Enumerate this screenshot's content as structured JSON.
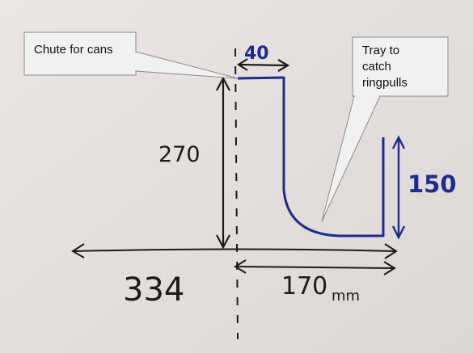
{
  "callouts": {
    "chute": "Chute for cans",
    "tray": "Tray to\ncatch\nringpulls"
  },
  "dimensions": {
    "chute_width": "40",
    "chute_height": "270",
    "tray_height": "150",
    "total_width": "334",
    "tray_width": "170",
    "unit": "mm"
  },
  "colors": {
    "background": "#e8e3e1",
    "ink_black": "#1b1b1b",
    "ink_blue": "#1c2c8e",
    "callout_fill": "#f1f1f1",
    "callout_border": "#8a8a8a"
  }
}
